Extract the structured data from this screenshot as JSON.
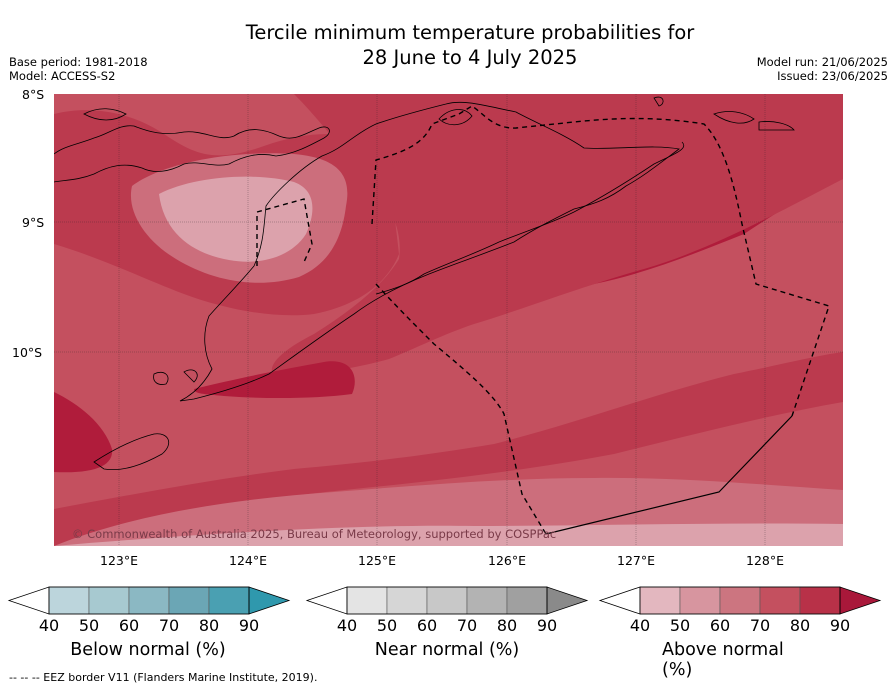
{
  "header": {
    "title_line1": "Tercile minimum temperature probabilities for",
    "title_line2": "28 June to 4 July 2025",
    "base_period": "Base period: 1981-2018",
    "model": "Model: ACCESS-S2",
    "model_run": "Model run: 21/06/2025",
    "issued": "Issued: 23/06/2025"
  },
  "map": {
    "lat_labels": [
      "8°S",
      "9°S",
      "10°S"
    ],
    "lon_labels": [
      "123°E",
      "124°E",
      "125°E",
      "126°E",
      "127°E",
      "128°E"
    ],
    "credit": "© Commonwealth of Australia 2025, Bureau of Meteorology, supported by COSPPac",
    "colors": {
      "p50": "#dca2ac",
      "p60": "#cc6e7c",
      "p70": "#c4505f",
      "p80": "#bb3a4e",
      "p90": "#b01c3b"
    }
  },
  "colorbars": [
    {
      "title": "Below normal (%)",
      "ticks": [
        "40",
        "50",
        "60",
        "70",
        "80",
        "90"
      ],
      "colors": [
        "#bcd5dc",
        "#a7c9d0",
        "#8bb8c3",
        "#6ba6b5",
        "#4aa0b2",
        "#2f98ad"
      ]
    },
    {
      "title": "Near normal (%)",
      "ticks": [
        "40",
        "50",
        "60",
        "70",
        "80",
        "90"
      ],
      "colors": [
        "#e4e4e4",
        "#d6d6d6",
        "#c8c8c8",
        "#b3b3b3",
        "#a0a0a0",
        "#8a8a8a"
      ]
    },
    {
      "title": "Above normal (%)",
      "ticks": [
        "40",
        "50",
        "60",
        "70",
        "80",
        "90"
      ],
      "colors": [
        "#e3b7bf",
        "#d7959f",
        "#cc7580",
        "#c4505f",
        "#b83148",
        "#a9183a"
      ]
    }
  ],
  "footnote": "-- -- -- EEZ border V11 (Flanders Marine Institute, 2019)."
}
